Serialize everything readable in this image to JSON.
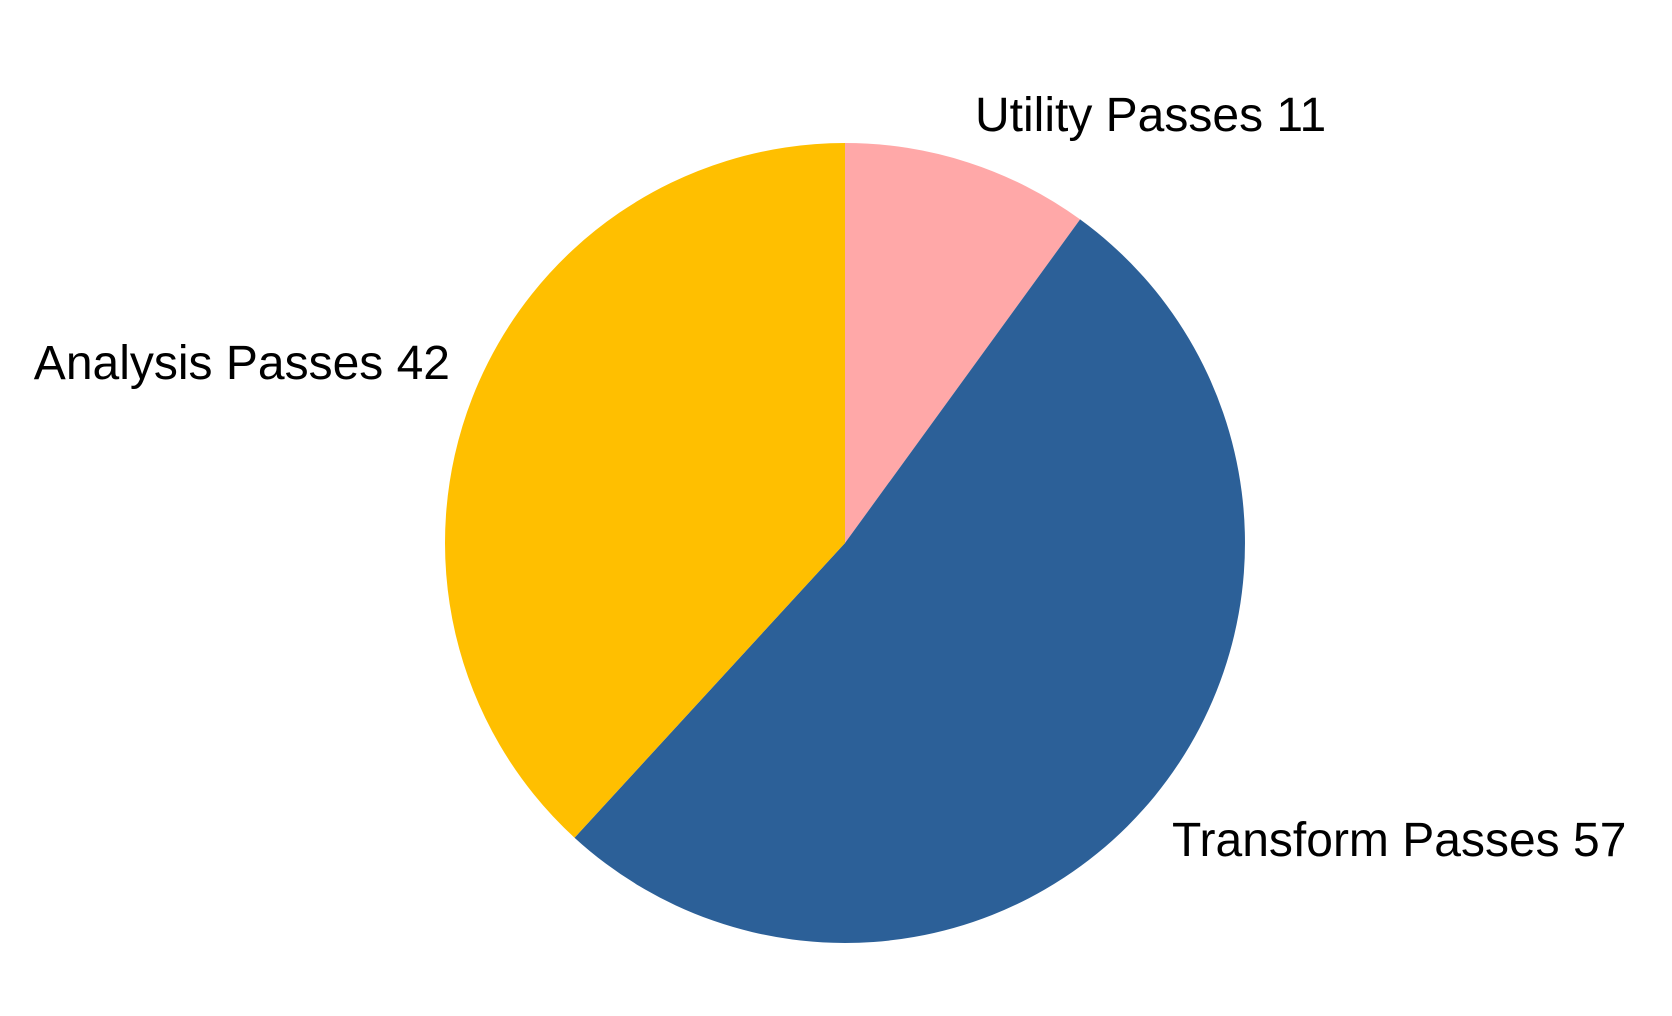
{
  "chart_data": {
    "type": "pie",
    "title": "",
    "start_angle_deg": 0,
    "direction": "clockwise",
    "slices": [
      {
        "label": "Utility Passes",
        "value": 11,
        "display": "Utility Passes 11",
        "color": "#FFA8A8"
      },
      {
        "label": "Transform Passes",
        "value": 57,
        "display": "Transform Passes 57",
        "color": "#2C6098"
      },
      {
        "label": "Analysis Passes",
        "value": 42,
        "display": "Analysis Passes 42",
        "color": "#FFBF00"
      }
    ]
  }
}
